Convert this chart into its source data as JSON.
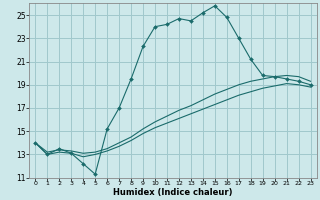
{
  "xlabel": "Humidex (Indice chaleur)",
  "bg_color": "#cde8ea",
  "grid_color": "#a0c8cc",
  "line_color": "#1a6b6b",
  "xlim": [
    -0.5,
    23.5
  ],
  "ylim": [
    11,
    26
  ],
  "xticks": [
    0,
    1,
    2,
    3,
    4,
    5,
    6,
    7,
    8,
    9,
    10,
    11,
    12,
    13,
    14,
    15,
    16,
    17,
    18,
    19,
    20,
    21,
    22,
    23
  ],
  "yticks": [
    11,
    13,
    15,
    17,
    19,
    21,
    23,
    25
  ],
  "line1_x": [
    0,
    1,
    2,
    3,
    4,
    5,
    6,
    7,
    8,
    9,
    10,
    11,
    12,
    13,
    14,
    15,
    16,
    17,
    18,
    19,
    20,
    21,
    22,
    23
  ],
  "line1_y": [
    14.0,
    13.0,
    13.5,
    13.1,
    12.2,
    11.3,
    15.2,
    17.0,
    19.5,
    22.3,
    24.0,
    24.2,
    24.7,
    24.5,
    25.2,
    25.8,
    24.8,
    23.0,
    21.2,
    19.8,
    19.7,
    19.5,
    19.3,
    19.0
  ],
  "line2_x": [
    0,
    1,
    2,
    3,
    4,
    5,
    6,
    7,
    8,
    9,
    10,
    11,
    12,
    13,
    14,
    15,
    16,
    17,
    18,
    19,
    20,
    21,
    22,
    23
  ],
  "line2_y": [
    14.0,
    13.2,
    13.4,
    13.3,
    13.1,
    13.2,
    13.5,
    14.0,
    14.5,
    15.2,
    15.8,
    16.3,
    16.8,
    17.2,
    17.7,
    18.2,
    18.6,
    19.0,
    19.3,
    19.5,
    19.7,
    19.8,
    19.7,
    19.3
  ],
  "line3_x": [
    0,
    1,
    2,
    3,
    4,
    5,
    6,
    7,
    8,
    9,
    10,
    11,
    12,
    13,
    14,
    15,
    16,
    17,
    18,
    19,
    20,
    21,
    22,
    23
  ],
  "line3_y": [
    14.0,
    13.0,
    13.2,
    13.1,
    12.8,
    13.0,
    13.3,
    13.7,
    14.2,
    14.8,
    15.3,
    15.7,
    16.1,
    16.5,
    16.9,
    17.3,
    17.7,
    18.1,
    18.4,
    18.7,
    18.9,
    19.1,
    19.0,
    18.8
  ]
}
